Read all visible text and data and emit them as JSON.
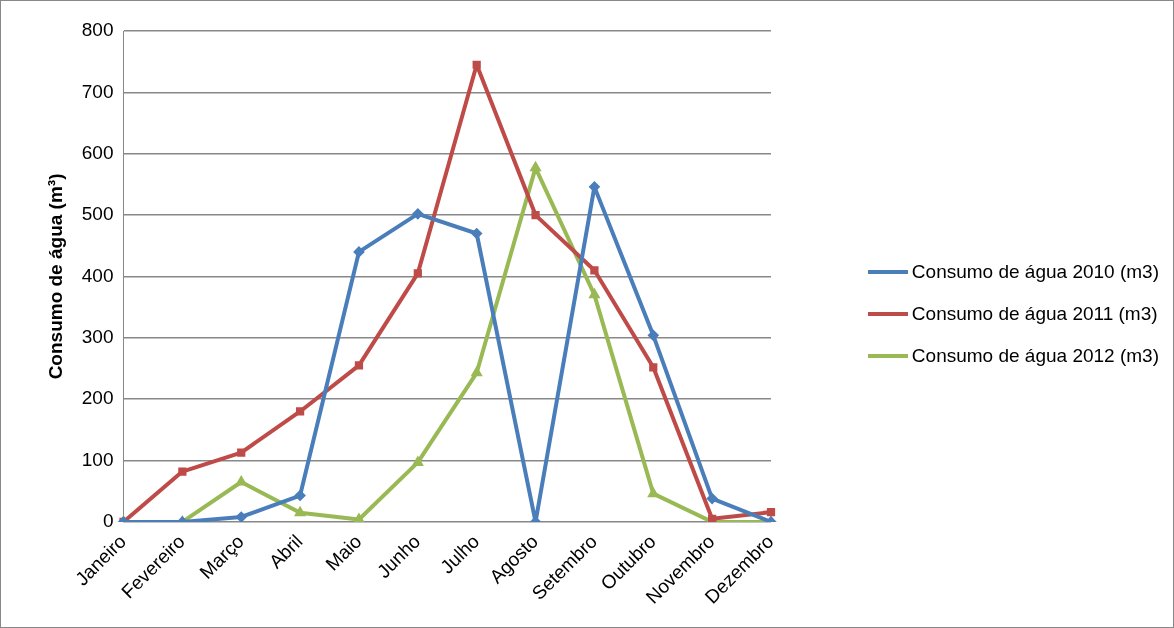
{
  "chart_data": {
    "type": "line",
    "ylabel": "Consumo de água (m³)",
    "categories": [
      "Janeiro",
      "Fevereiro",
      "Março",
      "Abril",
      "Maio",
      "Junho",
      "Julho",
      "Agosto",
      "Setembro",
      "Outubro",
      "Novembro",
      "Dezembro"
    ],
    "series": [
      {
        "name": "Consumo de água 2010 (m3)",
        "color": "#4a7ebb",
        "marker": "diamond",
        "values": [
          0,
          0,
          8,
          43,
          440,
          502,
          470,
          0,
          546,
          304,
          38,
          0
        ]
      },
      {
        "name": "Consumo de água 2011 (m3)",
        "color": "#be4b48",
        "marker": "square",
        "values": [
          0,
          82,
          113,
          180,
          255,
          405,
          745,
          500,
          410,
          252,
          5,
          16
        ]
      },
      {
        "name": "Consumo de água 2012 (m3)",
        "color": "#98b954",
        "marker": "triangle",
        "values": [
          0,
          0,
          65,
          15,
          4,
          97,
          243,
          577,
          370,
          46,
          0,
          0
        ]
      }
    ],
    "ylim": [
      0,
      800
    ],
    "yticks": [
      0,
      100,
      200,
      300,
      400,
      500,
      600,
      700,
      800
    ],
    "grid": "y",
    "legend": "right",
    "line_style": "solid"
  }
}
